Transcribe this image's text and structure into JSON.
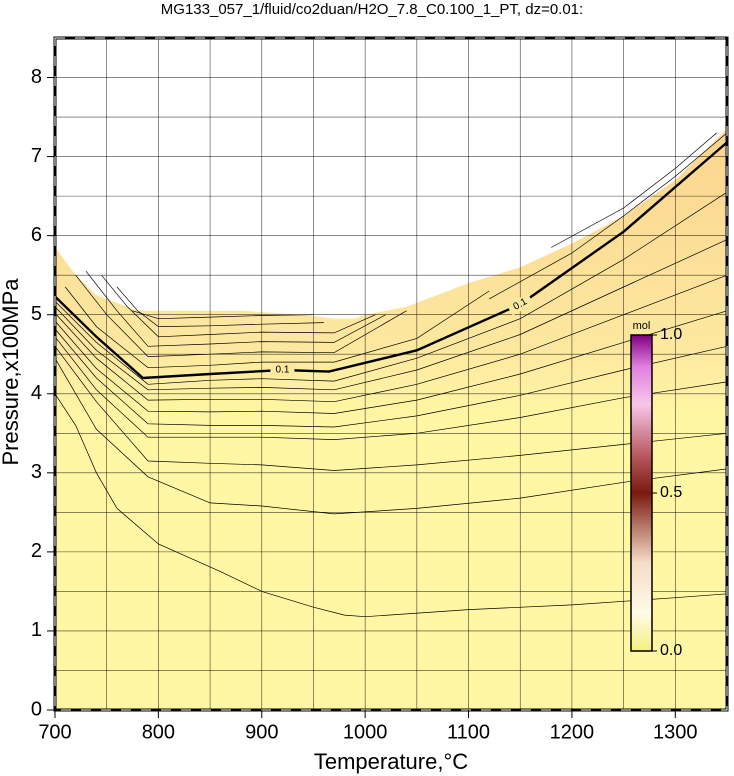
{
  "chart_data": {
    "type": "contour",
    "title": "MG133_057_1/fluid/co2duan/H2O_7.8_C0.100_1_PT, dz=0.01:",
    "xlabel": "Temperature,°C",
    "ylabel": "Pressure,x100MPa",
    "xlim": [
      700,
      1350
    ],
    "ylim": [
      0,
      8.5
    ],
    "xticks": [
      700,
      800,
      900,
      1000,
      1100,
      1200,
      1300
    ],
    "yticks": [
      0,
      1,
      2,
      3,
      4,
      5,
      6,
      7,
      8
    ],
    "xgrid": [
      750,
      800,
      850,
      900,
      950,
      1000,
      1050,
      1100,
      1150,
      1200,
      1250,
      1300
    ],
    "ygrid": [
      0.5,
      1,
      1.5,
      2,
      2.5,
      3,
      3.5,
      4,
      4.5,
      5,
      5.5,
      6,
      6.5,
      7,
      7.5,
      8
    ],
    "domain": {
      "x": [
        700,
        720,
        740,
        760,
        780,
        800,
        880,
        940,
        970,
        990,
        1000,
        1020,
        1040,
        1060,
        1080,
        1100,
        1150,
        1200,
        1250,
        1300,
        1350
      ],
      "y": [
        5.85,
        5.5,
        5.25,
        5.15,
        5.05,
        5.05,
        5.05,
        5.0,
        4.95,
        4.95,
        5.0,
        5.05,
        5.1,
        5.2,
        5.3,
        5.4,
        5.6,
        5.9,
        6.25,
        6.7,
        7.35
      ]
    },
    "series": [
      {
        "x": [
          700,
          720,
          740,
          760,
          800,
          860,
          900,
          950,
          980,
          1000,
          1100,
          1200,
          1300,
          1350
        ],
        "y": [
          4.0,
          3.6,
          3.0,
          2.55,
          2.1,
          1.75,
          1.5,
          1.3,
          1.2,
          1.18,
          1.27,
          1.33,
          1.42,
          1.47
        ]
      },
      {
        "x": [
          700,
          740,
          790,
          850,
          900,
          970,
          1050,
          1150,
          1250,
          1350
        ],
        "y": [
          4.45,
          3.55,
          2.95,
          2.62,
          2.58,
          2.48,
          2.55,
          2.68,
          2.88,
          3.05
        ]
      },
      {
        "x": [
          700,
          740,
          790,
          850,
          900,
          970,
          1050,
          1150,
          1250,
          1350
        ],
        "y": [
          4.6,
          3.9,
          3.15,
          3.12,
          3.1,
          3.03,
          3.1,
          3.22,
          3.36,
          3.5
        ]
      },
      {
        "x": [
          700,
          740,
          790,
          850,
          900,
          970,
          1050,
          1150,
          1250,
          1350
        ],
        "y": [
          4.72,
          4.05,
          3.45,
          3.45,
          3.45,
          3.42,
          3.5,
          3.7,
          3.95,
          4.15
        ]
      },
      {
        "x": [
          700,
          740,
          790,
          850,
          900,
          970,
          1050,
          1150,
          1250,
          1350
        ],
        "y": [
          4.82,
          4.2,
          3.62,
          3.6,
          3.6,
          3.58,
          3.72,
          3.98,
          4.3,
          4.6
        ]
      },
      {
        "x": [
          700,
          740,
          790,
          850,
          900,
          970,
          1050,
          1150,
          1250,
          1350
        ],
        "y": [
          4.92,
          4.32,
          3.78,
          3.77,
          3.78,
          3.75,
          3.92,
          4.25,
          4.65,
          5.05
        ]
      },
      {
        "x": [
          700,
          740,
          790,
          850,
          900,
          970,
          1050,
          1150,
          1250,
          1350
        ],
        "y": [
          5.02,
          4.45,
          3.92,
          3.93,
          3.93,
          3.9,
          4.12,
          4.5,
          5.0,
          5.5
        ]
      },
      {
        "x": [
          700,
          740,
          790,
          850,
          900,
          970,
          1050,
          1150,
          1250,
          1350
        ],
        "y": [
          5.1,
          4.55,
          4.05,
          4.07,
          4.08,
          4.05,
          4.3,
          4.75,
          5.35,
          5.95
        ]
      },
      {
        "x": [
          700,
          740,
          790,
          850,
          900,
          970,
          1050,
          1150,
          1250,
          1350
        ],
        "y": [
          5.17,
          4.65,
          4.12,
          4.17,
          4.19,
          4.16,
          4.45,
          4.95,
          5.7,
          6.55
        ]
      },
      {
        "label": "0.1",
        "x": [
          700,
          740,
          785,
          850,
          920,
          965,
          1050,
          1150,
          1250,
          1350
        ],
        "y": [
          5.23,
          4.72,
          4.2,
          4.25,
          4.3,
          4.28,
          4.55,
          5.13,
          6.05,
          7.18
        ]
      },
      {
        "x": [
          710,
          740,
          790,
          850,
          900,
          970,
          1050,
          1120
        ],
        "y": [
          5.35,
          4.85,
          4.33,
          4.36,
          4.4,
          4.4,
          4.7,
          5.3
        ]
      },
      {
        "x": [
          720,
          750,
          790,
          850,
          900,
          970,
          1040
        ],
        "y": [
          5.5,
          5.0,
          4.47,
          4.5,
          4.53,
          4.52,
          5.05
        ]
      },
      {
        "x": [
          730,
          760,
          790,
          850,
          900,
          970,
          1020
        ],
        "y": [
          5.55,
          5.05,
          4.6,
          4.63,
          4.66,
          4.65,
          5.0
        ]
      },
      {
        "x": [
          745,
          770,
          800,
          850,
          900,
          970,
          1010
        ],
        "y": [
          5.5,
          5.1,
          4.72,
          4.75,
          4.78,
          4.77,
          5.0
        ]
      },
      {
        "x": [
          760,
          780,
          800,
          850,
          900,
          960
        ],
        "y": [
          5.35,
          5.05,
          4.85,
          4.86,
          4.88,
          4.9
        ]
      },
      {
        "x": [
          775,
          800,
          850,
          900,
          950
        ],
        "y": [
          5.05,
          4.95,
          4.97,
          4.99,
          5.0
        ]
      },
      {
        "x": [
          1120,
          1200,
          1250,
          1300,
          1350
        ],
        "y": [
          5.2,
          5.78,
          6.25,
          6.75,
          7.3
        ]
      },
      {
        "x": [
          1180,
          1250,
          1300,
          1340
        ],
        "y": [
          5.85,
          6.35,
          6.85,
          7.3
        ]
      }
    ],
    "colorbar": {
      "label": "mol",
      "lim": [
        0,
        1
      ],
      "ticks": [
        {
          "value": 0,
          "label": "0.0"
        },
        {
          "value": 0.5,
          "label": "0.5"
        },
        {
          "value": 1,
          "label": "1.0"
        }
      ]
    }
  }
}
